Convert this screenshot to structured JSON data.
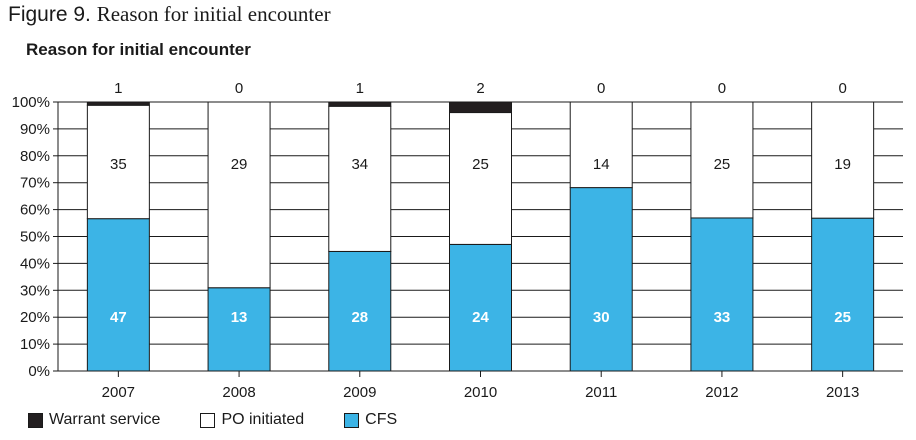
{
  "figure": {
    "label": "Figure 9.",
    "title": "Reason for initial encounter"
  },
  "colors": {
    "warrant": "#231f20",
    "po": "#ffffff",
    "cfs": "#3cb4e6",
    "axis": "#1a1a1a"
  },
  "legend": [
    {
      "name": "Warrant service",
      "color": "#231f20"
    },
    {
      "name": "PO initiated",
      "color": "#ffffff"
    },
    {
      "name": "CFS",
      "color": "#3cb4e6"
    }
  ],
  "chart_data": {
    "type": "bar",
    "stacked": true,
    "percent": true,
    "title": "Reason for initial encounter",
    "categories": [
      "2007",
      "2008",
      "2009",
      "2010",
      "2011",
      "2012",
      "2013"
    ],
    "series": [
      {
        "name": "CFS",
        "values": [
          47,
          13,
          28,
          24,
          30,
          33,
          25
        ]
      },
      {
        "name": "PO initiated",
        "values": [
          35,
          29,
          34,
          25,
          14,
          25,
          19
        ]
      },
      {
        "name": "Warrant service",
        "values": [
          1,
          0,
          1,
          2,
          0,
          0,
          0
        ]
      }
    ],
    "yticks": [
      "0%",
      "10%",
      "20%",
      "30%",
      "40%",
      "50%",
      "60%",
      "70%",
      "80%",
      "90%",
      "100%"
    ],
    "ylim": [
      0,
      100
    ],
    "grid": true,
    "legend_position": "bottom-left"
  }
}
